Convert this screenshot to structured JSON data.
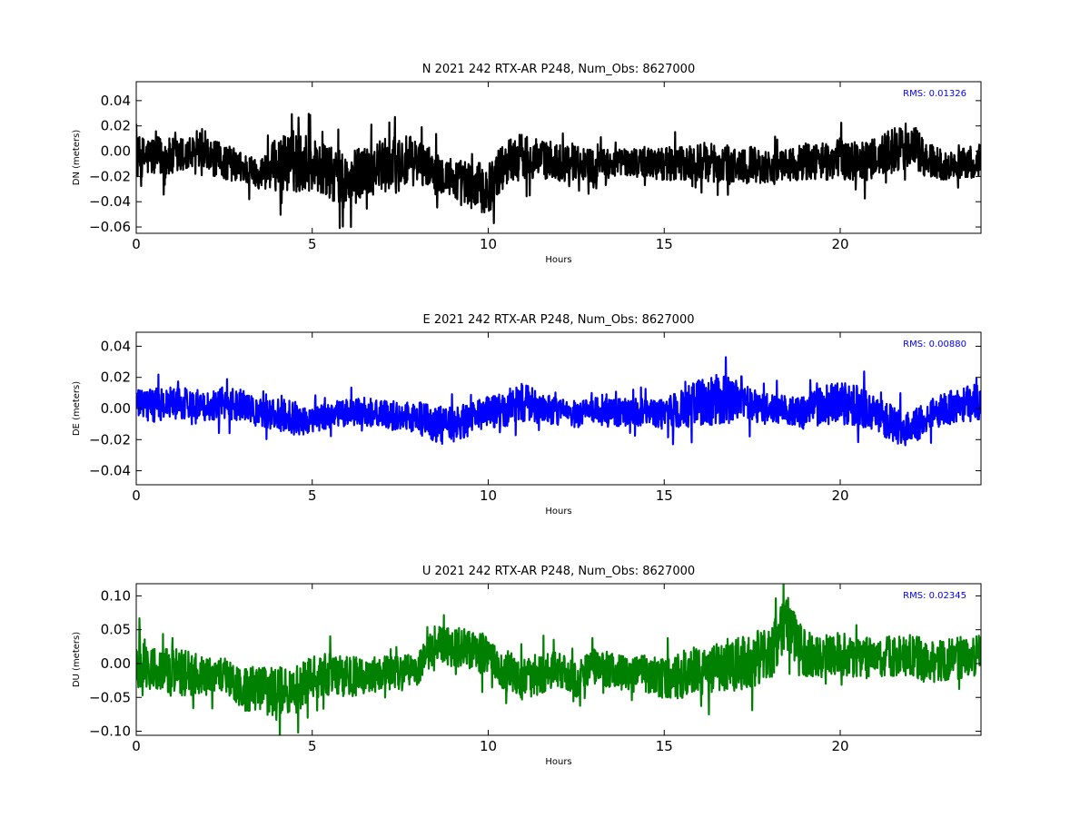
{
  "chart_data": [
    {
      "type": "line",
      "title": "N 2021 242 RTX-AR  P248, Num_Obs: 8627000",
      "xlabel": "Hours",
      "ylabel": "DN (meters)",
      "xlim": [
        0,
        24
      ],
      "ylim": [
        -0.065,
        0.055
      ],
      "xticks": [
        0,
        5,
        10,
        15,
        20
      ],
      "xtick_labels": [
        "0",
        "5",
        "10",
        "15",
        "20"
      ],
      "yticks": [
        -0.06,
        -0.04,
        -0.02,
        0.0,
        0.02,
        0.04
      ],
      "ytick_labels": [
        "−0.06",
        "−0.04",
        "−0.02",
        "0.00",
        "0.02",
        "0.04"
      ],
      "color": "#000000",
      "annotation": "RMS:  0.01326",
      "series": [
        {
          "x": [
            0,
            0.5,
            1,
            1.5,
            2,
            2.5,
            3,
            3.5,
            4,
            4.5,
            5,
            5.5,
            6,
            6.5,
            7,
            7.5,
            8,
            8.5,
            9,
            9.5,
            10,
            10.5,
            11,
            11.5,
            12,
            12.5,
            13,
            13.5,
            14,
            14.5,
            15,
            15.5,
            16,
            16.5,
            17,
            17.5,
            18,
            18.5,
            19,
            19.5,
            20,
            20.5,
            21,
            21.5,
            22,
            22.5,
            23,
            23.5,
            24
          ],
          "center": [
            -0.005,
            -0.004,
            -0.006,
            -0.003,
            -0.005,
            -0.008,
            -0.013,
            -0.018,
            -0.01,
            -0.008,
            -0.01,
            -0.018,
            -0.025,
            -0.015,
            -0.012,
            -0.01,
            -0.008,
            -0.015,
            -0.022,
            -0.028,
            -0.03,
            -0.008,
            -0.004,
            -0.006,
            -0.009,
            -0.008,
            -0.012,
            -0.01,
            -0.008,
            -0.009,
            -0.01,
            -0.011,
            -0.008,
            -0.01,
            -0.012,
            -0.01,
            -0.013,
            -0.012,
            -0.008,
            -0.008,
            -0.006,
            -0.008,
            -0.006,
            0.0,
            0.004,
            -0.008,
            -0.012,
            -0.01,
            -0.008
          ],
          "band": [
            0.018,
            0.018,
            0.018,
            0.017,
            0.016,
            0.016,
            0.014,
            0.013,
            0.024,
            0.028,
            0.024,
            0.024,
            0.026,
            0.023,
            0.024,
            0.026,
            0.02,
            0.017,
            0.019,
            0.022,
            0.022,
            0.02,
            0.021,
            0.017,
            0.017,
            0.016,
            0.015,
            0.013,
            0.013,
            0.014,
            0.015,
            0.016,
            0.017,
            0.017,
            0.018,
            0.016,
            0.015,
            0.015,
            0.016,
            0.017,
            0.018,
            0.018,
            0.018,
            0.02,
            0.022,
            0.016,
            0.013,
            0.014,
            0.015
          ]
        }
      ]
    },
    {
      "type": "line",
      "title": "E 2021 242 RTX-AR  P248, Num_Obs: 8627000",
      "xlabel": "Hours",
      "ylabel": "DE (meters)",
      "xlim": [
        0,
        24
      ],
      "ylim": [
        -0.049,
        0.049
      ],
      "xticks": [
        0,
        5,
        10,
        15,
        20
      ],
      "xtick_labels": [
        "0",
        "5",
        "10",
        "15",
        "20"
      ],
      "yticks": [
        -0.04,
        -0.02,
        0.0,
        0.02,
        0.04
      ],
      "ytick_labels": [
        "−0.04",
        "−0.02",
        "0.00",
        "0.02",
        "0.04"
      ],
      "color": "#0000ff",
      "annotation": "RMS:  0.00880",
      "series": [
        {
          "x": [
            0,
            0.5,
            1,
            1.5,
            2,
            2.5,
            3,
            3.5,
            4,
            4.5,
            5,
            5.5,
            6,
            6.5,
            7,
            7.5,
            8,
            8.5,
            9,
            9.5,
            10,
            10.5,
            11,
            11.5,
            12,
            12.5,
            13,
            13.5,
            14,
            14.5,
            15,
            15.5,
            16,
            16.5,
            17,
            17.5,
            18,
            18.5,
            19,
            19.5,
            20,
            20.5,
            21,
            21.5,
            22,
            22.5,
            23,
            23.5,
            24
          ],
          "center": [
            0.003,
            0.002,
            0.004,
            0.003,
            0.002,
            0.004,
            0.002,
            -0.003,
            -0.004,
            -0.006,
            -0.008,
            -0.004,
            -0.003,
            -0.002,
            -0.004,
            -0.005,
            -0.006,
            -0.01,
            -0.012,
            -0.006,
            -0.003,
            0.0,
            0.004,
            0.0,
            -0.002,
            -0.004,
            -0.002,
            -0.003,
            -0.002,
            -0.003,
            -0.004,
            0.0,
            0.004,
            0.006,
            0.005,
            0.002,
            -0.001,
            0.0,
            -0.003,
            0.002,
            0.003,
            0.002,
            -0.004,
            -0.01,
            -0.014,
            -0.004,
            0.0,
            0.003,
            0.004
          ],
          "band": [
            0.01,
            0.012,
            0.012,
            0.011,
            0.011,
            0.012,
            0.011,
            0.01,
            0.011,
            0.013,
            0.01,
            0.009,
            0.01,
            0.01,
            0.01,
            0.011,
            0.012,
            0.013,
            0.014,
            0.012,
            0.012,
            0.013,
            0.014,
            0.011,
            0.01,
            0.01,
            0.01,
            0.01,
            0.01,
            0.01,
            0.011,
            0.014,
            0.018,
            0.018,
            0.016,
            0.012,
            0.011,
            0.011,
            0.012,
            0.014,
            0.016,
            0.015,
            0.013,
            0.013,
            0.013,
            0.011,
            0.012,
            0.013,
            0.013
          ]
        }
      ]
    },
    {
      "type": "line",
      "title": "U 2021 242 RTX-AR  P248, Num_Obs: 8627000",
      "xlabel": "Hours",
      "ylabel": "DU (meters)",
      "xlim": [
        0,
        24
      ],
      "ylim": [
        -0.106,
        0.118
      ],
      "xticks": [
        0,
        5,
        10,
        15,
        20
      ],
      "xtick_labels": [
        "0",
        "5",
        "10",
        "15",
        "20"
      ],
      "yticks": [
        -0.1,
        -0.05,
        0.0,
        0.05,
        0.1
      ],
      "ytick_labels": [
        "−0.10",
        "−0.05",
        "0.00",
        "0.05",
        "0.10"
      ],
      "color": "#008000",
      "annotation": "RMS:  0.02345",
      "series": [
        {
          "x": [
            0,
            0.5,
            1,
            1.5,
            2,
            2.5,
            3,
            3.5,
            4,
            4.5,
            5,
            5.5,
            6,
            6.5,
            7,
            7.5,
            8,
            8.5,
            9,
            9.5,
            10,
            10.5,
            11,
            11.5,
            12,
            12.5,
            13,
            13.5,
            14,
            14.5,
            15,
            15.5,
            16,
            16.5,
            17,
            17.5,
            18,
            18.5,
            19,
            19.5,
            20,
            20.5,
            21,
            21.5,
            22,
            22.5,
            23,
            23.5,
            24
          ],
          "center": [
            0.01,
            -0.01,
            -0.012,
            -0.015,
            -0.02,
            -0.015,
            -0.04,
            -0.035,
            -0.045,
            -0.04,
            -0.02,
            -0.015,
            -0.02,
            -0.018,
            -0.015,
            -0.015,
            -0.01,
            0.03,
            0.025,
            0.02,
            0.01,
            -0.01,
            -0.025,
            -0.015,
            -0.01,
            -0.025,
            -0.005,
            -0.01,
            -0.015,
            -0.015,
            -0.025,
            -0.015,
            -0.01,
            -0.005,
            0.0,
            0.005,
            0.015,
            0.06,
            0.015,
            0.01,
            0.015,
            0.01,
            0.005,
            0.01,
            0.015,
            0.0,
            0.005,
            0.01,
            0.015
          ],
          "band": [
            0.05,
            0.035,
            0.04,
            0.038,
            0.03,
            0.03,
            0.035,
            0.038,
            0.045,
            0.04,
            0.035,
            0.035,
            0.035,
            0.03,
            0.03,
            0.03,
            0.028,
            0.03,
            0.035,
            0.035,
            0.035,
            0.035,
            0.035,
            0.035,
            0.03,
            0.03,
            0.03,
            0.03,
            0.03,
            0.03,
            0.035,
            0.04,
            0.04,
            0.04,
            0.045,
            0.045,
            0.045,
            0.045,
            0.04,
            0.035,
            0.035,
            0.035,
            0.035,
            0.035,
            0.035,
            0.035,
            0.035,
            0.035,
            0.035
          ]
        }
      ]
    }
  ]
}
